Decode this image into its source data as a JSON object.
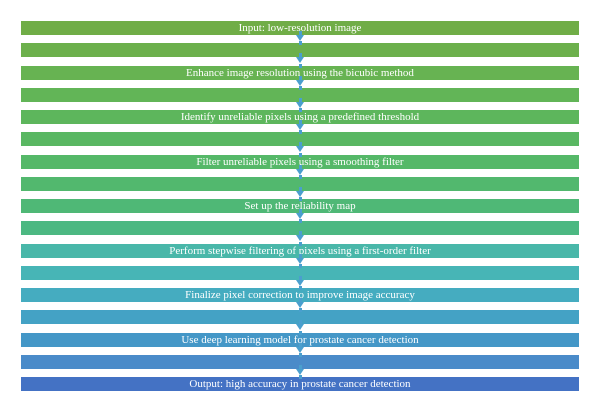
{
  "steps": [
    {
      "label": "Input: low-resolution image",
      "color": "#70ad47"
    },
    {
      "label": "",
      "color": "#6cb04c"
    },
    {
      "label": "Enhance image resolution using the bicubic method",
      "color": "#67b352"
    },
    {
      "label": "",
      "color": "#62b557"
    },
    {
      "label": "Identify unreliable pixels using a predefined threshold",
      "color": "#5db65c"
    },
    {
      "label": "",
      "color": "#59b762"
    },
    {
      "label": "Filter unreliable pixels using a smoothing filter",
      "color": "#55b868"
    },
    {
      "label": "",
      "color": "#52b86e"
    },
    {
      "label": "Set up the reliability map",
      "color": "#4fb876"
    },
    {
      "label": "",
      "color": "#4cb882"
    },
    {
      "label": "Perform stepwise filtering of pixels using a first-order filter",
      "color": "#49b7a9"
    },
    {
      "label": "",
      "color": "#47b5b6"
    },
    {
      "label": "Finalize pixel correction to improve image accuracy",
      "color": "#45acc0"
    },
    {
      "label": "",
      "color": "#44a2c5"
    },
    {
      "label": "Use deep learning model for prostate cancer detection",
      "color": "#4497c7"
    },
    {
      "label": "",
      "color": "#4a8bc9"
    },
    {
      "label": "Output: high accuracy in prostate cancer detection",
      "color": "#4472c4"
    }
  ],
  "arrow_color": "#4a9fce"
}
